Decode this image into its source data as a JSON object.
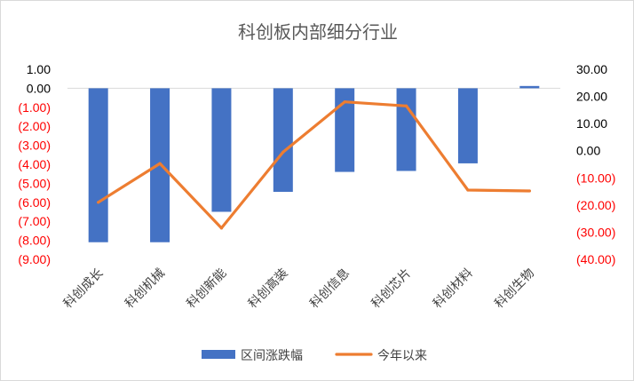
{
  "chart_data": {
    "type": "bar+line",
    "title": "科创板内部细分行业",
    "categories": [
      "科创成长",
      "科创机械",
      "科创新能",
      "科创高装",
      "科创信息",
      "科创芯片",
      "科创材料",
      "科创生物"
    ],
    "series": [
      {
        "name": "区间涨跌幅",
        "type": "bar",
        "axis": "left",
        "color": "#4472C4",
        "values": [
          -8.1,
          -8.1,
          -6.5,
          -5.45,
          -4.4,
          -4.35,
          -3.95,
          0.12
        ]
      },
      {
        "name": "今年以来",
        "type": "line",
        "axis": "right",
        "color": "#ED7D31",
        "values": [
          -19.0,
          -4.7,
          -28.5,
          -0.5,
          18.0,
          16.5,
          -14.5,
          -14.8
        ]
      }
    ],
    "y_left": {
      "range": [
        -9,
        1
      ],
      "ticks": [
        "1.00",
        "0.00",
        "(1.00)",
        "(2.00)",
        "(3.00)",
        "(4.00)",
        "(5.00)",
        "(6.00)",
        "(7.00)",
        "(8.00)",
        "(9.00)"
      ],
      "negative_color": "#FF0000",
      "positive_color": "#000000"
    },
    "y_right": {
      "range": [
        -40,
        30
      ],
      "ticks": [
        "30.00",
        "20.00",
        "10.00",
        "0.00",
        "(10.00)",
        "(20.00)",
        "(30.00)",
        "(40.00)"
      ],
      "negative_color": "#FF0000",
      "positive_color": "#000000"
    },
    "legend_position": "bottom",
    "grid": false
  }
}
